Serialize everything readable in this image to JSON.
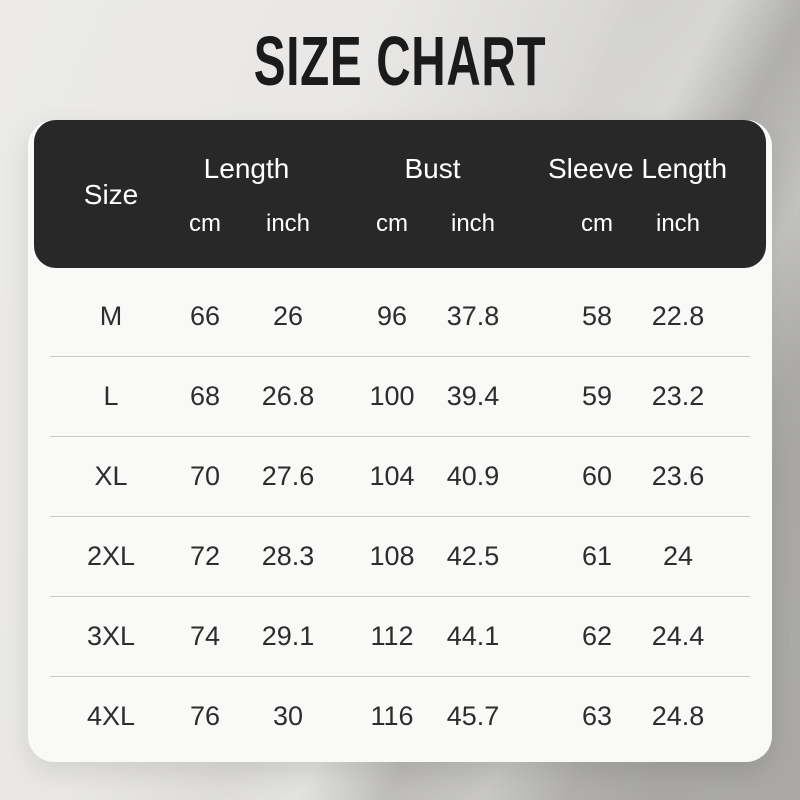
{
  "title": "SIZE CHART",
  "chart_data": {
    "type": "table",
    "title": "SIZE CHART",
    "header": {
      "size_label": "Size",
      "groups": [
        {
          "label": "Length",
          "units": [
            "cm",
            "inch"
          ]
        },
        {
          "label": "Bust",
          "units": [
            "cm",
            "inch"
          ]
        },
        {
          "label": "Sleeve Length",
          "units": [
            "cm",
            "inch"
          ]
        }
      ],
      "flat_columns": [
        "Size",
        "Length cm",
        "Length inch",
        "Bust cm",
        "Bust inch",
        "Sleeve Length cm",
        "Sleeve Length inch"
      ]
    },
    "rows": [
      {
        "size": "M",
        "values": [
          "66",
          "26",
          "96",
          "37.8",
          "58",
          "22.8"
        ]
      },
      {
        "size": "L",
        "values": [
          "68",
          "26.8",
          "100",
          "39.4",
          "59",
          "23.2"
        ]
      },
      {
        "size": "XL",
        "values": [
          "70",
          "27.6",
          "104",
          "40.9",
          "60",
          "23.6"
        ]
      },
      {
        "size": "2XL",
        "values": [
          "72",
          "28.3",
          "108",
          "42.5",
          "61",
          "24"
        ]
      },
      {
        "size": "3XL",
        "values": [
          "74",
          "29.1",
          "112",
          "44.1",
          "62",
          "24.4"
        ]
      },
      {
        "size": "4XL",
        "values": [
          "76",
          "30",
          "116",
          "45.7",
          "63",
          "24.8"
        ]
      }
    ]
  },
  "colors": {
    "title_text": "#1b1b1b",
    "header_bg": "#282828",
    "header_text": "#ffffff",
    "card_bg": "#f9f9f8",
    "body_text": "#2d2d2d",
    "divider": "#cbcbcb",
    "background_light": "#ebeae8",
    "background_dark": "#a9a8a6"
  }
}
